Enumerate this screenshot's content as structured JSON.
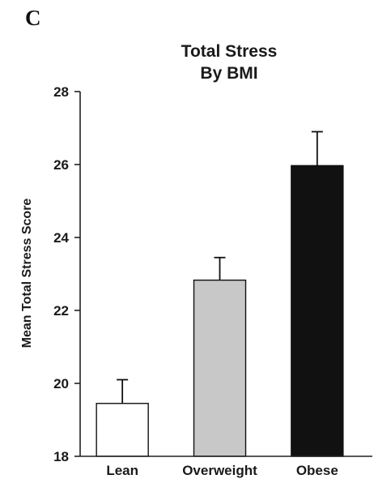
{
  "panel_label": "C",
  "chart_data": {
    "type": "bar",
    "title": [
      "Total Stress",
      "By BMI"
    ],
    "xlabel": "",
    "ylabel": "Mean Total Stress Score",
    "categories": [
      "Lean",
      "Overweight",
      "Obese"
    ],
    "values": [
      19.45,
      22.83,
      25.97
    ],
    "error_upper": [
      0.65,
      0.62,
      0.93
    ],
    "bar_colors": [
      "#ffffff",
      "#c8c8c8",
      "#111111"
    ],
    "ylim": [
      18,
      28
    ],
    "yticks": [
      18,
      20,
      22,
      24,
      26,
      28
    ],
    "grid": false,
    "legend": "none"
  }
}
